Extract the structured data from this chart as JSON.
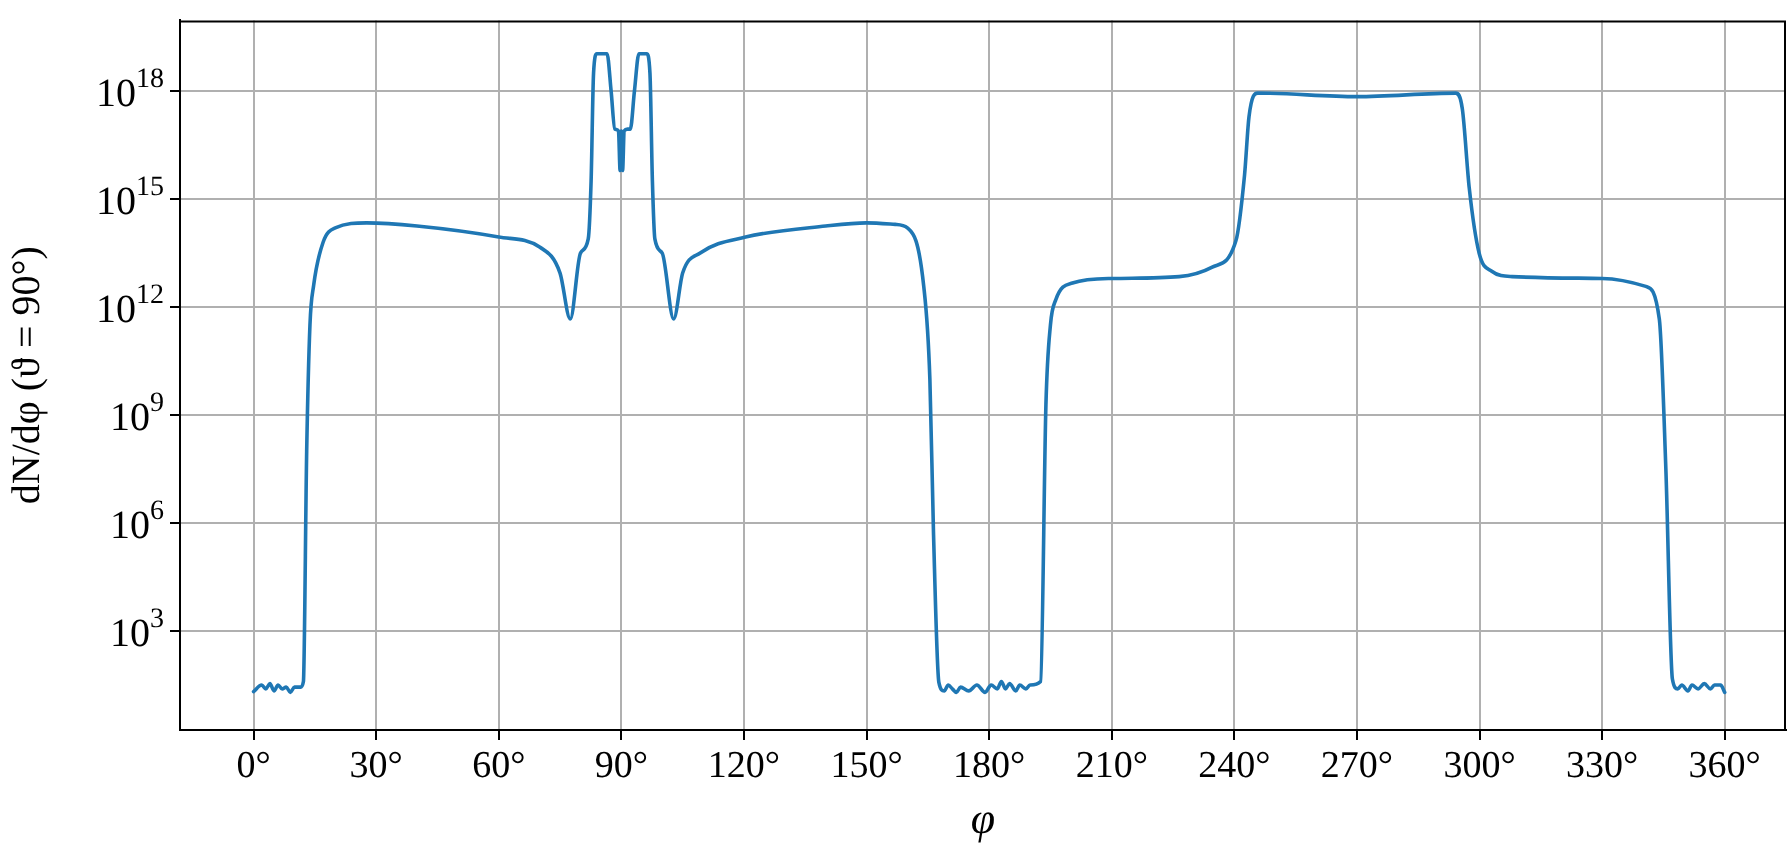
{
  "chart_data": {
    "type": "line",
    "xlabel": "φ",
    "ylabel": "dN/dφ (ϑ = 90°)",
    "log": "y",
    "grid": true,
    "legend": false,
    "marker": "none",
    "line_style": "solid",
    "xlim": [
      -18,
      375
    ],
    "xticks": [
      {
        "value": 0,
        "label": "0°"
      },
      {
        "value": 30,
        "label": "30°"
      },
      {
        "value": 60,
        "label": "60°"
      },
      {
        "value": 90,
        "label": "90°"
      },
      {
        "value": 120,
        "label": "120°"
      },
      {
        "value": 150,
        "label": "150°"
      },
      {
        "value": 180,
        "label": "180°"
      },
      {
        "value": 210,
        "label": "210°"
      },
      {
        "value": 240,
        "label": "240°"
      },
      {
        "value": 270,
        "label": "270°"
      },
      {
        "value": 300,
        "label": "300°"
      },
      {
        "value": 330,
        "label": "330°"
      },
      {
        "value": 360,
        "label": "360°"
      }
    ],
    "ylim": [
      1.8,
      9.3e+19
    ],
    "yticks": [
      {
        "value": 1000.0,
        "label": "10$^{3}$"
      },
      {
        "value": 1000000.0,
        "label": "10$^{6}$"
      },
      {
        "value": 1000000000.0,
        "label": "10$^{9}$"
      },
      {
        "value": 1000000000000.0,
        "label": "10$^{12}$"
      },
      {
        "value": 1000000000000000.0,
        "label": "10$^{15}$"
      },
      {
        "value": 1e+18,
        "label": "10$^{18}$"
      }
    ],
    "series": [
      {
        "color": "#1f77b4",
        "x": [
          0,
          2,
          3,
          4,
          5,
          6,
          7,
          8,
          9,
          10,
          11.5,
          12.2,
          13,
          13.8,
          14.7,
          17,
          20,
          27.7,
          40,
          60,
          70,
          75,
          77.5,
          80,
          81.9,
          82.6,
          83.2,
          84,
          86.5,
          87.5,
          88.4,
          89.3,
          89.7,
          90,
          90.3,
          90.7,
          91.5,
          92.2,
          93.2,
          94.3,
          96.2,
          97,
          97.6,
          98.2,
          100,
          102.8,
          105,
          109.3,
          120.4,
          140,
          150,
          157,
          160,
          164,
          165.5,
          166.4,
          167.7,
          169,
          170,
          171,
          172,
          173,
          175,
          177,
          179,
          180.5,
          182,
          183,
          184,
          185,
          186.5,
          187.5,
          189,
          190,
          192.6,
          193.9,
          195,
          196.3,
          200.4,
          210.2,
          226.5,
          234.6,
          240.4,
          242.5,
          243.6,
          245.7,
          270,
          294.2,
          295.8,
          297.5,
          299.9,
          303,
          308,
          330,
          340.7,
          344,
          345.6,
          347.2,
          348.5,
          349.5,
          351,
          352,
          353.5,
          355,
          356.5,
          357.5,
          359,
          360
        ],
        "values": [
          21,
          32,
          25,
          35,
          22,
          32,
          25,
          28,
          20,
          28,
          28,
          40,
          100000000.0,
          320000000000.0,
          4000000000000.0,
          63000000000000.0,
          160000000000000.0,
          220000000000000.0,
          180000000000000.0,
          89000000000000.0,
          47000000000000.0,
          8900000000000.0,
          470000000000.0,
          32000000000000.0,
          79000000000000.0,
          3200000000000000.0,
          3.2e+18,
          1.1e+19,
          1.1e+19,
          1e+18,
          8.9e+16,
          7.9e+16,
          6300000000000000.0,
          7.9e+16,
          6300000000000000.0,
          7.9e+16,
          8.9e+16,
          8.9e+16,
          1e+18,
          1.1e+19,
          1.1e+19,
          3.2e+18,
          3200000000000000.0,
          79000000000000.0,
          32000000000000.0,
          470000000000.0,
          8900000000000.0,
          32000000000000.0,
          89000000000000.0,
          180000000000000.0,
          220000000000000.0,
          200000000000000.0,
          160000000000000.0,
          3800000000000.0,
          10000000000.0,
          470000.0,
          38,
          22,
          32,
          25,
          20,
          28,
          22,
          32,
          20,
          32,
          25,
          40,
          25,
          35,
          22,
          32,
          25,
          32,
          40,
          2000000000.0,
          320000000000.0,
          1600000000000.0,
          4700000000000.0,
          6300000000000.0,
          7100000000000.0,
          13000000000000.0,
          71000000000000.0,
          4700000000000000.0,
          2e+17,
          8.9e+17,
          7.1e+17,
          8.9e+17,
          3.2e+17,
          2000000000000000.0,
          32000000000000.0,
          10000000000000.0,
          7100000000000.0,
          6300000000000.0,
          3800000000000.0,
          470000000000.0,
          32000000.0,
          47,
          25,
          32,
          22,
          32,
          25,
          35,
          25,
          32,
          32,
          20
        ]
      }
    ]
  }
}
